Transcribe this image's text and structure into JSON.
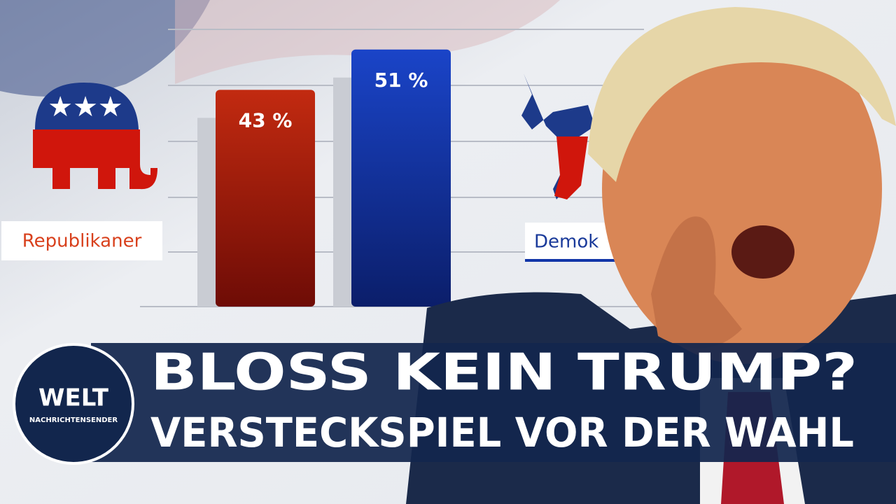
{
  "chart_data": {
    "type": "bar",
    "categories": [
      "Republikaner",
      "Demok"
    ],
    "values": [
      43,
      51
    ],
    "value_labels": [
      "43 %",
      "51 %"
    ],
    "colors": [
      "#a81e0e",
      "#1236a8"
    ],
    "ylim": [
      0,
      60
    ]
  },
  "headline": {
    "line1": "BLOSS KEIN TRUMP?",
    "line2": "VERSTECKSPIEL VOR DER WAHL"
  },
  "logo": {
    "name": "WELT",
    "subtitle": "NACHRICHTENSENDER"
  }
}
